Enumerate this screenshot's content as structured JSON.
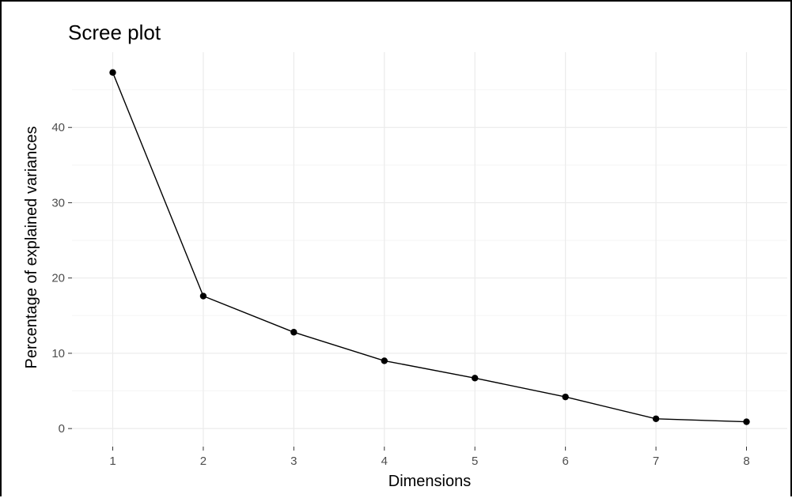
{
  "chart_data": {
    "type": "line",
    "title": "Scree plot",
    "xlabel": "Dimensions",
    "ylabel": "Percentage of explained variances",
    "x": [
      1,
      2,
      3,
      4,
      5,
      6,
      7,
      8
    ],
    "values": [
      47.3,
      17.6,
      12.8,
      9.0,
      6.7,
      4.2,
      1.3,
      0.9
    ],
    "x_ticks": [
      "1",
      "2",
      "3",
      "4",
      "5",
      "6",
      "7",
      "8"
    ],
    "y_ticks": [
      "0",
      "10",
      "20",
      "30",
      "40"
    ],
    "xlim": [
      0.55,
      8.45
    ],
    "ylim": [
      -2.4,
      50.0
    ],
    "grid": true,
    "legend": "none",
    "colors": {
      "line": "#000000",
      "point": "#000000",
      "grid_major": "#ebebeb",
      "grid_minor": "#f5f5f5",
      "tick_label": "#4d4d4d"
    }
  }
}
